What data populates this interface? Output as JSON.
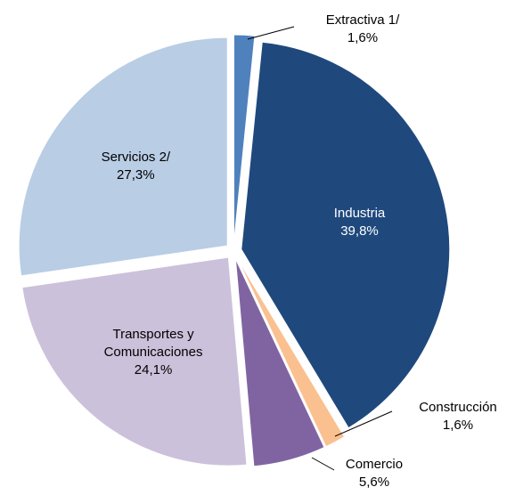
{
  "chart_data": {
    "type": "pie",
    "categories": [
      "Extractiva 1/",
      "Industria",
      "Construcción",
      "Comercio",
      "Transportes y Comunicaciones",
      "Servicios 2/"
    ],
    "values": [
      1.6,
      39.8,
      1.6,
      5.6,
      24.1,
      27.3
    ],
    "value_labels": [
      "1,6%",
      "39,8%",
      "1,6%",
      "5,6%",
      "24,1%",
      "27,3%"
    ],
    "colors": [
      "#4f81bd",
      "#1f497d",
      "#fac090",
      "#8064a2",
      "#ccc1da",
      "#b9cde5"
    ]
  }
}
